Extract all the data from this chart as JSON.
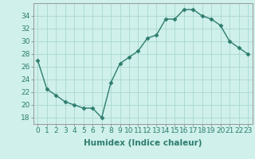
{
  "x": [
    0,
    1,
    2,
    3,
    4,
    5,
    6,
    7,
    8,
    9,
    10,
    11,
    12,
    13,
    14,
    15,
    16,
    17,
    18,
    19,
    20,
    21,
    22,
    23
  ],
  "y": [
    27,
    22.5,
    21.5,
    20.5,
    20,
    19.5,
    19.5,
    18,
    23.5,
    26.5,
    27.5,
    28.5,
    30.5,
    31,
    33.5,
    33.5,
    35,
    35,
    34,
    33.5,
    32.5,
    30,
    29,
    28
  ],
  "line_color": "#2e7d6e",
  "marker": "D",
  "marker_size": 2.5,
  "bg_color": "#cff0eb",
  "grid_color": "#aad8d0",
  "xlabel": "Humidex (Indice chaleur)",
  "ylim": [
    17,
    36
  ],
  "xlim": [
    -0.5,
    23.5
  ],
  "yticks": [
    18,
    20,
    22,
    24,
    26,
    28,
    30,
    32,
    34
  ],
  "xticks": [
    0,
    1,
    2,
    3,
    4,
    5,
    6,
    7,
    8,
    9,
    10,
    11,
    12,
    13,
    14,
    15,
    16,
    17,
    18,
    19,
    20,
    21,
    22,
    23
  ],
  "xlabel_fontsize": 7.5,
  "tick_fontsize": 6.5,
  "line_width": 1.0
}
